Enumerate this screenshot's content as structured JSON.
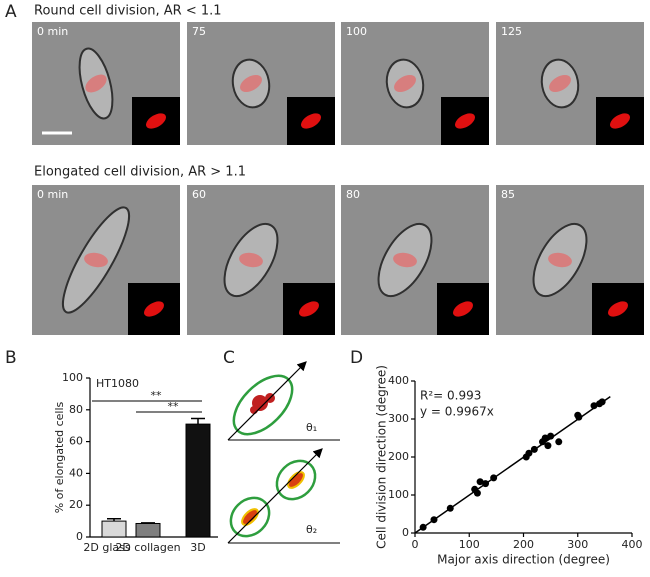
{
  "panel_a": {
    "label": "A",
    "rows": [
      {
        "title": "Round cell division, AR < 1.1",
        "frames": [
          "0 min",
          "75",
          "100",
          "125"
        ]
      },
      {
        "title": "Elongated cell division, AR > 1.1",
        "frames": [
          "0 min",
          "60",
          "80",
          "85"
        ]
      }
    ]
  },
  "panel_c": {
    "label": "C",
    "angles": [
      "θ₁",
      "θ₂"
    ]
  },
  "chart_data": [
    {
      "type": "bar",
      "panel": "B",
      "subtitle": "HT1080",
      "y_label": "% of elongated cells",
      "categories": [
        "2D glass",
        "2D collagen",
        "3D"
      ],
      "values": [
        10,
        8.5,
        71
      ],
      "errors": [
        1.5,
        0.4,
        3.5
      ],
      "colors": [
        "#d9d9d9",
        "#7f7f7f",
        "#111111"
      ],
      "ylim": [
        0,
        100
      ],
      "yticks": [
        0,
        20,
        40,
        60,
        80,
        100
      ],
      "significance": [
        {
          "from": 0,
          "to": 2,
          "label": "**"
        },
        {
          "from": 1,
          "to": 2,
          "label": "**"
        }
      ]
    },
    {
      "type": "scatter",
      "panel": "D",
      "x_label": "Major axis direction (degree)",
      "y_label": "Cell division direction (degree)",
      "x": [
        15,
        35,
        65,
        110,
        115,
        120,
        130,
        145,
        205,
        210,
        220,
        235,
        240,
        245,
        250,
        265,
        300,
        302,
        330,
        340,
        345
      ],
      "values": [
        15,
        35,
        65,
        115,
        105,
        135,
        130,
        145,
        200,
        210,
        220,
        240,
        250,
        230,
        255,
        240,
        310,
        305,
        335,
        340,
        345
      ],
      "color": "#000000",
      "xlim": [
        0,
        400
      ],
      "ylim": [
        0,
        400
      ],
      "xticks": [
        0,
        100,
        200,
        300,
        400
      ],
      "yticks": [
        0,
        100,
        200,
        300,
        400
      ],
      "annotation": "R²= 0.993",
      "fit": {
        "value": 0.9967,
        "label": "y = 0.9967x"
      }
    }
  ]
}
